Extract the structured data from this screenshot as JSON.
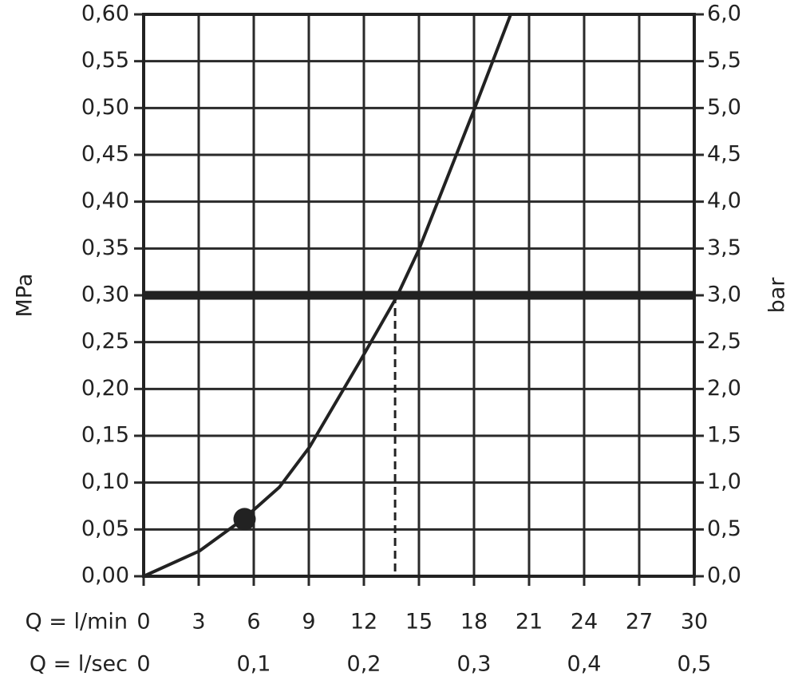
{
  "chart_data": {
    "type": "line",
    "ylabel": "MPa",
    "y2label": "bar",
    "xlabel": "Q = l/min",
    "x2label": "Q = l/sec",
    "x": [
      0,
      3.04,
      5.43,
      7.39,
      9.04,
      11.74,
      13.78,
      15,
      18.04,
      20
    ],
    "series": [
      {
        "color": "#222222",
        "values": [
          0,
          0.027,
          0.061,
          0.095,
          0.138,
          0.228,
          0.298,
          0.349,
          0.5,
          0.6
        ]
      }
    ],
    "xlim": [
      0,
      30
    ],
    "xticks": [
      0,
      3,
      6,
      9,
      12,
      15,
      18,
      21,
      24,
      27,
      30
    ],
    "x2lim": [
      0,
      0.5
    ],
    "x2ticks": [
      0,
      {
        "value": 0.1,
        "label": "0,1"
      },
      {
        "value": 0.2,
        "label": "0,2"
      },
      {
        "value": 0.3,
        "label": "0,3"
      },
      {
        "value": 0.4,
        "label": "0,4"
      },
      {
        "value": 0.5,
        "label": "0,5"
      }
    ],
    "ylim": [
      0,
      0.6
    ],
    "yticks": [
      {
        "value": 0,
        "label": "0,00"
      },
      {
        "value": 0.05,
        "label": "0,05"
      },
      {
        "value": 0.1,
        "label": "0,10"
      },
      {
        "value": 0.15,
        "label": "0,15"
      },
      {
        "value": 0.2,
        "label": "0,20"
      },
      {
        "value": 0.25,
        "label": "0,25"
      },
      {
        "value": 0.3,
        "label": "0,30"
      },
      {
        "value": 0.35,
        "label": "0,35"
      },
      {
        "value": 0.4,
        "label": "0,40"
      },
      {
        "value": 0.45,
        "label": "0,45"
      },
      {
        "value": 0.5,
        "label": "0,50"
      },
      {
        "value": 0.55,
        "label": "0,55"
      },
      {
        "value": 0.6,
        "label": "0,60"
      }
    ],
    "y2lim": [
      0,
      6
    ],
    "y2ticks": [
      {
        "value": 0,
        "label": "0,0"
      },
      {
        "value": 0.5,
        "label": "0,5"
      },
      {
        "value": 1,
        "label": "1,0"
      },
      {
        "value": 1.5,
        "label": "1,5"
      },
      {
        "value": 2,
        "label": "2,0"
      },
      {
        "value": 2.5,
        "label": "2,5"
      },
      {
        "value": 3,
        "label": "3,0"
      },
      {
        "value": 3.5,
        "label": "3,5"
      },
      {
        "value": 4,
        "label": "4,0"
      },
      {
        "value": 4.5,
        "label": "4,5"
      },
      {
        "value": 5,
        "label": "5,0"
      },
      {
        "value": 5.5,
        "label": "5,5"
      },
      {
        "value": 6,
        "label": "6,0"
      }
    ],
    "grid": true,
    "reference_line": 0.3,
    "dashed_x": 13.7,
    "marker": {
      "x": 5.5,
      "y": 0.061
    }
  }
}
